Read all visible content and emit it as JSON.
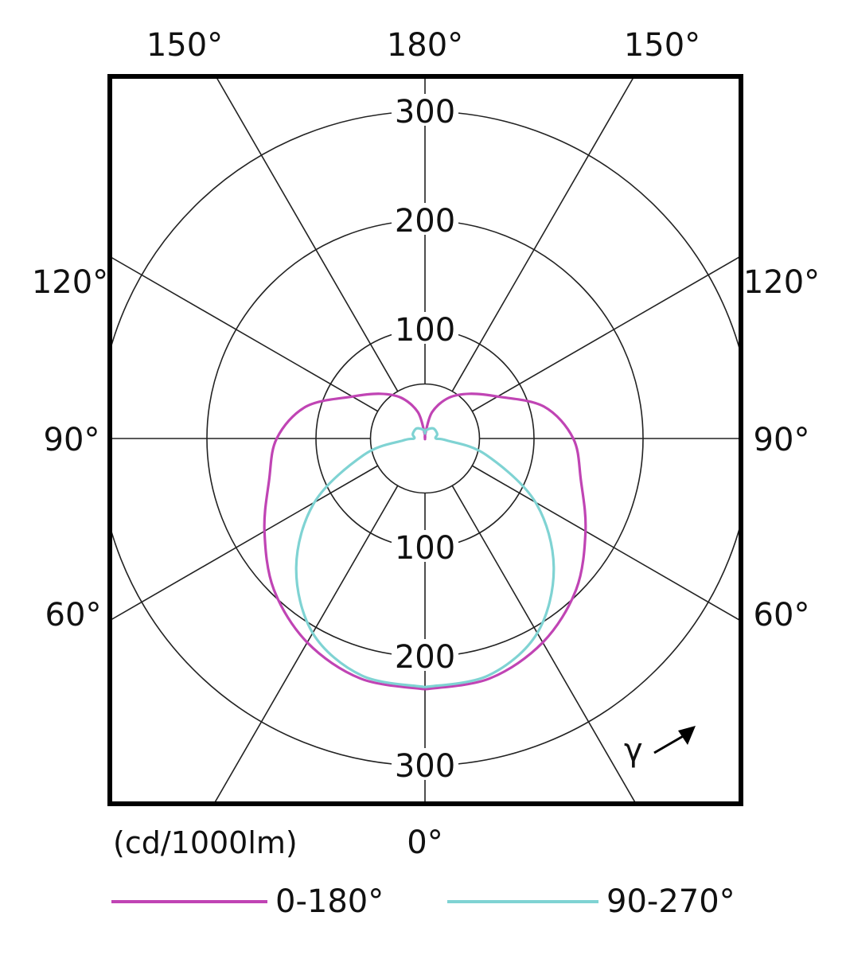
{
  "chart_data": {
    "type": "polar",
    "unit_label": "(cd/1000lm)",
    "gamma_label": "γ",
    "rings": [
      50,
      100,
      200,
      300
    ],
    "ring_labels": [
      "100",
      "200",
      "300"
    ],
    "angle_labels": {
      "top_left": "150°",
      "top_center": "180°",
      "top_right": "150°",
      "left_120": "120°",
      "right_120": "120°",
      "left_90": "90°",
      "right_90": "90°",
      "left_60": "60°",
      "right_60": "60°",
      "bottom_center": "0°"
    },
    "series": [
      {
        "name": "0-180°",
        "color": "#c044b4",
        "points": [
          {
            "gamma": 0,
            "cd": 230
          },
          {
            "gamma": 15,
            "cd": 228
          },
          {
            "gamma": 30,
            "cd": 216
          },
          {
            "gamma": 45,
            "cd": 196
          },
          {
            "gamma": 60,
            "cd": 170
          },
          {
            "gamma": 75,
            "cd": 148
          },
          {
            "gamma": 90,
            "cd": 136
          },
          {
            "gamma": 105,
            "cd": 113
          },
          {
            "gamma": 120,
            "cd": 77
          },
          {
            "gamma": 135,
            "cd": 58
          },
          {
            "gamma": 150,
            "cd": 43
          },
          {
            "gamma": 165,
            "cd": 25
          },
          {
            "gamma": 175,
            "cd": 5
          },
          {
            "gamma": 180,
            "cd": 0
          }
        ]
      },
      {
        "name": "90-270°",
        "color": "#7fd3d3",
        "points": [
          {
            "gamma": 0,
            "cd": 228
          },
          {
            "gamma": 15,
            "cd": 225
          },
          {
            "gamma": 30,
            "cd": 206
          },
          {
            "gamma": 45,
            "cd": 167
          },
          {
            "gamma": 60,
            "cd": 117
          },
          {
            "gamma": 75,
            "cd": 58
          },
          {
            "gamma": 85,
            "cd": 20
          },
          {
            "gamma": 90,
            "cd": 10
          },
          {
            "gamma": 110,
            "cd": 12
          },
          {
            "gamma": 140,
            "cd": 12
          },
          {
            "gamma": 170,
            "cd": 8
          },
          {
            "gamma": 180,
            "cd": 5
          }
        ]
      }
    ],
    "legend": [
      {
        "label": "0-180°",
        "color": "#c044b4"
      },
      {
        "label": "90-270°",
        "color": "#7fd3d3"
      }
    ]
  }
}
